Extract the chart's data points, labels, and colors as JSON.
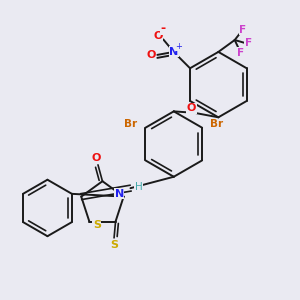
{
  "bg_color": "#eaeaf2",
  "bond_color": "#1a1a1a",
  "atom_colors": {
    "O": "#ee1111",
    "N": "#2222ee",
    "S": "#ccaa00",
    "Br": "#cc6600",
    "F": "#cc44cc",
    "H": "#44aaaa",
    "C": "#1a1a1a"
  }
}
